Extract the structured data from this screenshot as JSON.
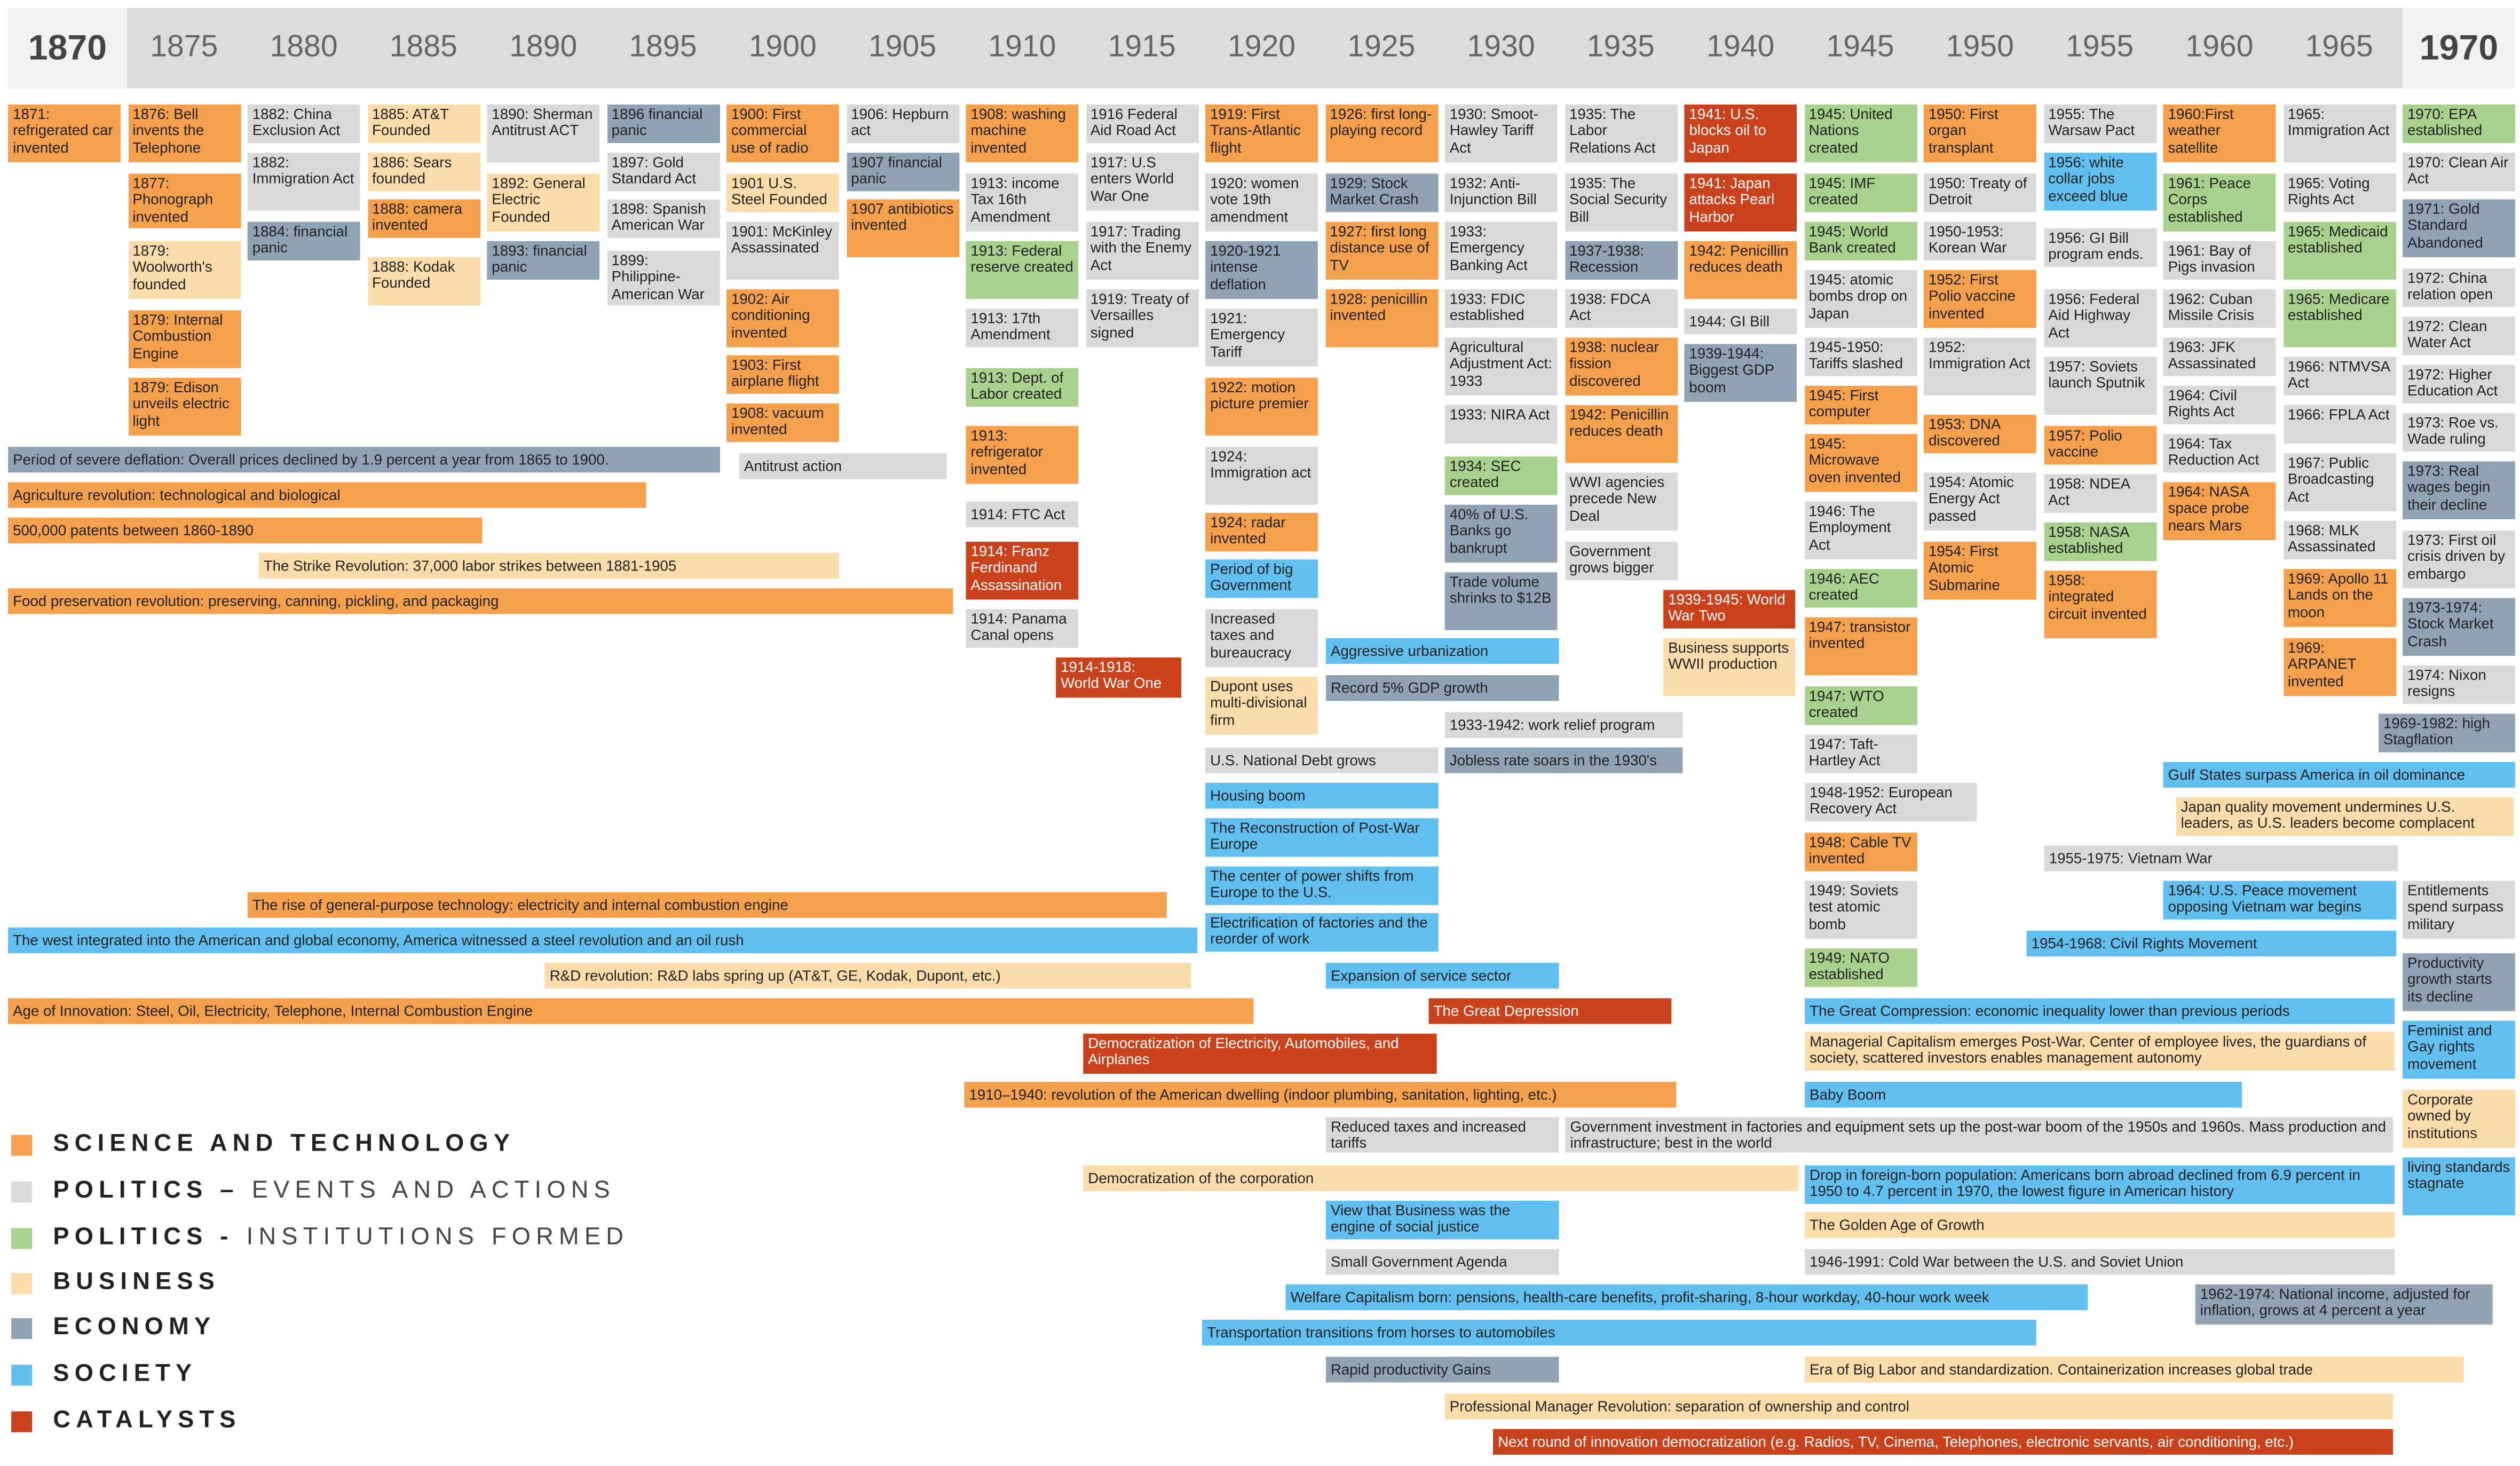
{
  "header": {
    "years": [
      1870,
      1875,
      1880,
      1885,
      1890,
      1895,
      1900,
      1905,
      1910,
      1915,
      1920,
      1925,
      1930,
      1935,
      1940,
      1945,
      1950,
      1955,
      1960,
      1965,
      1970
    ]
  },
  "categories": [
    {
      "name": "SCIENCE AND TECHNOLOGY",
      "color": "#f5a04c",
      "events": [
        "1871: refrigerated car invented",
        "1876: Bell invents the Telephone",
        "1877: Phonograph invented",
        "1879: Internal Combustion Engine",
        "1879: Edison unveils electric light",
        "1888: camera invented",
        "1900: First commercial use of radio",
        "1902: Air conditioning invented",
        "1903: First airplane flight",
        "1908: vacuum invented",
        "1907 antibiotics invented",
        "1908: washing machine invented",
        "1913: refrigerator invented",
        "1919: First Trans-Atlantic flight",
        "1922: motion picture premier",
        "1924: radar invented",
        "1926: first long-playing record",
        "1927: first long distance use of TV",
        "1928: penicillin invented",
        "1938: nuclear fission discovered",
        "1942: Penicillin reduces death",
        "1942: Penicillin reduces death",
        "1945: First computer",
        "1945: Microwave oven invented",
        "1947: transistor invented",
        "1948: Cable TV invented",
        "1950: First organ transplant",
        "1952: First Polio vaccine invented",
        "1953: DNA discovered",
        "1954: First Atomic Submarine",
        "1957: Polio vaccine",
        "1958: integrated circuit invented",
        "1960:First weather satellite",
        "1964: NASA space probe nears Mars",
        "1969: Apollo 11 Lands on the moon",
        "1969: ARPANET invented",
        "Agriculture revolution: technological and biological",
        "500,000 patents between 1860-1890",
        "Food preservation revolution: preserving, canning, pickling, and packaging",
        "The rise of general-purpose technology: electricity and internal combustion engine",
        "Age of Innovation: Steel, Oil, Electricity, Telephone, Internal Combustion Engine",
        "1910–1940: revolution of the American dwelling (indoor plumbing, sanitation, lighting, etc.)"
      ]
    },
    {
      "name": "POLITICS –",
      "detail": "EVENTS AND ACTIONS",
      "color": "#d9d9d9",
      "events": [
        "1882: China Exclusion Act",
        "1882: Immigration Act",
        "1890: Sherman Antitrust ACT",
        "1897: Gold Standard Act",
        "1898: Spanish American War",
        "1899: Philippine-American War",
        "1901: McKinley Assassinated",
        "1906: Hepburn act",
        "1913: income Tax 16th Amendment",
        "1913: 17th Amendment",
        "1914: FTC Act",
        "1914: Panama Canal opens",
        "1916 Federal Aid Road Act",
        "1917: U.S enters World War One",
        "1917: Trading with the Enemy Act",
        "1919: Treaty of Versailles signed",
        "1920: women vote 19th amendment",
        "1921: Emergency Tariff",
        "1924: Immigration act",
        "Increased taxes and bureaucracy",
        "1930: Smoot-Hawley Tariff Act",
        "1932: Anti-Injunction Bill",
        "1933: Emergency Banking Act",
        "1933: FDIC established",
        "Agricultural Adjustment Act: 1933",
        "1933: NIRA Act",
        "1935: The Labor Relations Act",
        "1935: The Social Security Bill",
        "1938: FDCA Act",
        "WWI agencies precede New Deal",
        "Government grows bigger",
        "1944: GI Bill",
        "1945: atomic bombs drop on Japan",
        "1945-1950: Tariffs slashed",
        "1946: The Employment Act",
        "1947: Taft-Hartley Act",
        "1949: Soviets test atomic bomb",
        "1950: Treaty of Detroit",
        "1950-1953: Korean War",
        "1952: Immigration Act",
        "1954: Atomic Energy Act passed",
        "1955: The Warsaw Pact",
        "1956: GI Bill program ends.",
        "1956: Federal Aid Highway Act",
        "1957: Soviets launch Sputnik",
        "1958: NDEA Act",
        "1961: Bay of Pigs invasion",
        "1962: Cuban Missile Crisis",
        "1963: JFK Assassinated",
        "1964: Civil Rights Act",
        "1964: Tax Reduction Act",
        "1965: Immigration Act",
        "1965: Voting Rights Act",
        "1966: NTMVSA Act",
        "1966: FPLA Act",
        "1967: Public Broadcasting Act",
        "1968: MLK Assassinated",
        "1970: Clean Air Act",
        "1972: China relation open",
        "1972: Clean Water Act",
        "1972: Higher Education Act",
        "1973: Roe vs. Wade ruling",
        "1973: First oil crisis driven by embargo",
        "1974: Nixon resigns",
        "Entitlements spend surpass military",
        "Antitrust action",
        "U.S. National Debt grows",
        "1933-1942: work relief program",
        "1948-1952: European Recovery Act",
        "Reduced taxes and increased tariffs",
        "Government investment in factories and equipment sets up the post-war boom of the 1950s and 1960s. Mass production and infrastructure; best in the world",
        "Small Government Agenda",
        "1946-1991: Cold War between the U.S. and Soviet Union",
        "1955-1975: Vietnam War"
      ]
    },
    {
      "name": "POLITICS -",
      "detail": "INSTITUTIONS FORMED",
      "color": "#a9d18e",
      "events": [
        "1913: Federal reserve created",
        "1913: Dept. of Labor created",
        "1934: SEC created",
        "1945: United Nations created",
        "1945: IMF created",
        "1945: World Bank created",
        "1946: AEC created",
        "1947: WTO created",
        "1949: NATO established",
        "1958: NASA established",
        "1961: Peace Corps established",
        "1965: Medicaid established",
        "1965: Medicare established",
        "1970: EPA established"
      ]
    },
    {
      "name": "BUSINESS",
      "color": "#fcdcaa",
      "events": [
        "1879: Woolworth's founded",
        "1885: AT&T Founded",
        "1886: Sears founded",
        "1888: Kodak Founded",
        "1892: General Electric Founded",
        "1901 U.S. Steel Founded",
        "Dupont uses multi-divisional firm",
        "Business supports WWII production",
        "Corporate owned by institutions",
        "The Strike Revolution: 37,000 labor strikes between 1881-1905",
        "R&D revolution: R&D labs spring up (AT&T, GE, Kodak, Dupont, etc.)",
        "Democratization of the corporation",
        "Japan quality movement undermines U.S. leaders, as U.S. leaders become complacent",
        "Managerial Capitalism emerges Post-War. Center of employee lives, the guardians of society, scattered investors enables management autonomy",
        "The Golden Age of Growth",
        "Era of Big Labor and standardization. Containerization increases global trade",
        "Professional Manager Revolution: separation of ownership and control"
      ]
    },
    {
      "name": "ECONOMY",
      "color": "#8fa3b4",
      "events": [
        "1884: financial panic",
        "1893: financial panic",
        "1896 financial panic",
        "1907 financial panic",
        "1920-1921 intense deflation",
        "1929: Stock Market Crash",
        "40% of U.S. Banks go bankrupt",
        "Trade volume shrinks to $12B",
        "1937-1938: Recession",
        "1939-1944: Biggest GDP boom",
        "1971: Gold Standard Abandoned",
        "1973: Real wages begin their decline",
        "1973-1974: Stock Market Crash",
        "Productivity growth starts its decline",
        "Period of severe deflation: Overall prices declined by 1.9 percent a year from 1865 to 1900.",
        "Record 5% GDP growth",
        "Jobless rate soars in the 1930's",
        "1962-1974: National income, adjusted for inflation, grows at 4 percent a year",
        "Rapid productivity Gains",
        "1969-1982: high Stagflation"
      ]
    },
    {
      "name": "SOCIETY",
      "color": "#62c0f1",
      "events": [
        "1956: white collar jobs exceed blue",
        "Feminist and Gay rights movement",
        "living standards stagnate",
        "Period of big Government",
        "Housing boom",
        "The Reconstruction of Post-War Europe",
        "The center of power shifts from Europe to the U.S.",
        "Electrification of factories and the reorder of work",
        "Aggressive urbanization",
        "Expansion of service sector",
        "The west integrated into the American and global economy, America witnessed a steel revolution and an oil rush",
        "View that Business was the engine of social justice",
        "Welfare Capitalism born: pensions, health-care benefits, profit-sharing, 8-hour workday, 40-hour work week",
        "Transportation transitions from horses to automobiles",
        "Gulf States surpass America in oil dominance",
        "1964: U.S. Peace movement opposing Vietnam war begins",
        "1954-1968: Civil Rights Movement",
        "The Great Compression: economic inequality lower than previous periods",
        "Baby Boom",
        "Drop in foreign-born population: Americans born abroad declined from 6.9 percent in 1950 to 4.7 percent in 1970, the lowest figure in American history"
      ]
    },
    {
      "name": "CATALYSTS",
      "color": "#c9421b",
      "events": [
        "1914: Franz Ferdinand Assassination",
        "1941: U.S. blocks oil to Japan",
        "1941: Japan attacks Pearl Harbor",
        "1914-1918: World War One",
        "1939-1945: World War Two",
        "Democratization of Electricity, Automobiles, and Airplanes",
        "The Great Depression",
        "Next round of innovation democratization (e.g. Radios, TV, Cinema, Telephones, electronic servants, air conditioning, etc.)"
      ]
    }
  ]
}
